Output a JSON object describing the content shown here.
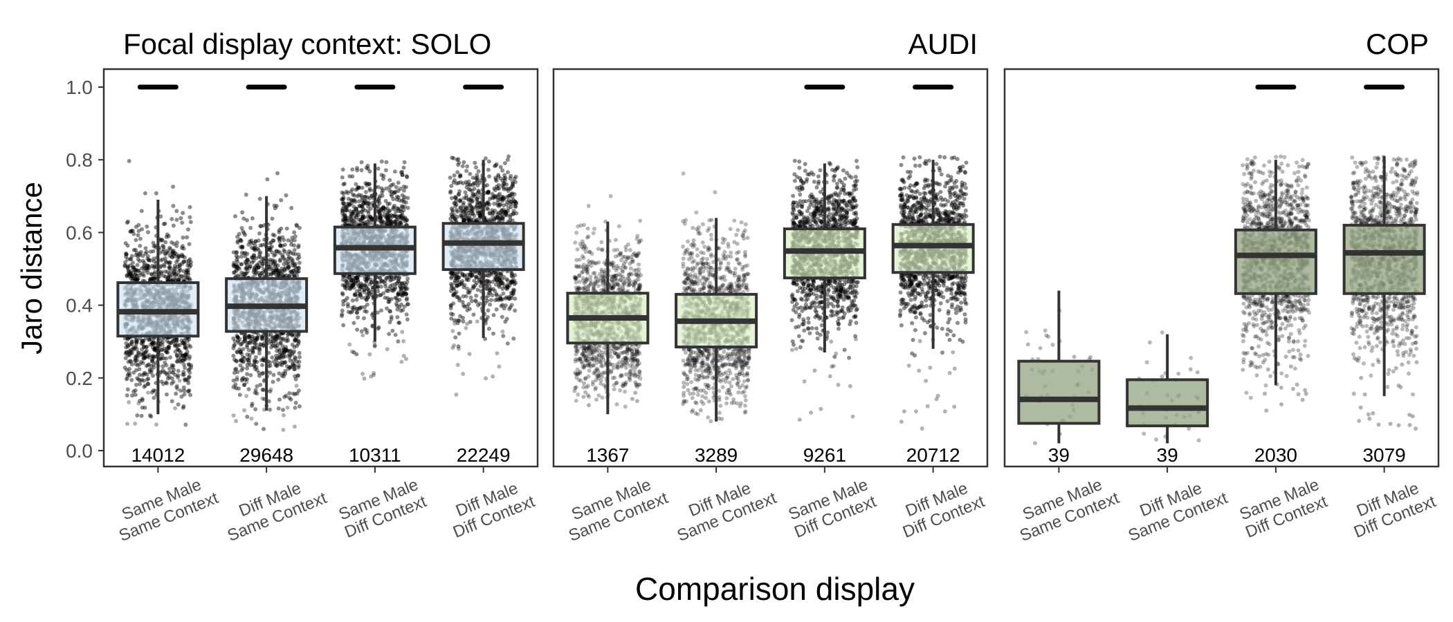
{
  "figure": {
    "ylabel": "Jaro distance",
    "xlabel": "Comparison display"
  },
  "colors": {
    "solo_fill": "#d3e4f1",
    "audi_fill": "#d9efc4",
    "cop_fill": "#97a886",
    "box_stroke": "#333333",
    "frame": "#333333",
    "points": "#000000"
  },
  "chart_data": {
    "type": "box",
    "ylim": [
      0,
      1
    ],
    "yticks": [
      "0.0",
      "0.2",
      "0.4",
      "0.6",
      "0.8",
      "1.0"
    ],
    "grid": false,
    "points_jittered": true,
    "categories": [
      "Same Male\nSame Context",
      "Diff Male\nSame Context",
      "Same Male\nDiff Context",
      "Diff Male\nDiff Context"
    ],
    "panels": [
      {
        "title": "Focal display context: SOLO",
        "fill": "#d3e4f1",
        "boxes": [
          {
            "category": "Same Male\nSame Context",
            "n": "14012",
            "min": 0.1,
            "q1": 0.315,
            "median": 0.382,
            "q3": 0.462,
            "max": 0.69,
            "point_min": 0.07,
            "point_max": 0.8,
            "ones": true
          },
          {
            "category": "Diff Male\nSame Context",
            "n": "29648",
            "min": 0.11,
            "q1": 0.328,
            "median": 0.397,
            "q3": 0.473,
            "max": 0.7,
            "point_min": 0.05,
            "point_max": 0.8,
            "ones": true
          },
          {
            "category": "Same Male\nDiff Context",
            "n": "10311",
            "min": 0.3,
            "q1": 0.487,
            "median": 0.558,
            "q3": 0.615,
            "max": 0.79,
            "point_min": 0.14,
            "point_max": 0.8,
            "ones": true
          },
          {
            "category": "Diff Male\nDiff Context",
            "n": "22249",
            "min": 0.31,
            "q1": 0.498,
            "median": 0.571,
            "q3": 0.625,
            "max": 0.8,
            "point_min": 0.15,
            "point_max": 0.81,
            "ones": true
          }
        ]
      },
      {
        "title": "AUDI",
        "fill": "#d9efc4",
        "boxes": [
          {
            "category": "Same Male\nSame Context",
            "n": "1367",
            "min": 0.1,
            "q1": 0.296,
            "median": 0.365,
            "q3": 0.433,
            "max": 0.63,
            "point_min": 0.12,
            "point_max": 0.71,
            "ones": false
          },
          {
            "category": "Diff Male\nSame Context",
            "n": "3289",
            "min": 0.08,
            "q1": 0.285,
            "median": 0.356,
            "q3": 0.43,
            "max": 0.64,
            "point_min": 0.08,
            "point_max": 0.8,
            "ones": false
          },
          {
            "category": "Same Male\nDiff Context",
            "n": "9261",
            "min": 0.27,
            "q1": 0.475,
            "median": 0.549,
            "q3": 0.61,
            "max": 0.79,
            "point_min": 0.08,
            "point_max": 0.8,
            "ones": true
          },
          {
            "category": "Diff Male\nDiff Context",
            "n": "20712",
            "min": 0.28,
            "q1": 0.49,
            "median": 0.564,
            "q3": 0.622,
            "max": 0.8,
            "point_min": 0.05,
            "point_max": 0.81,
            "ones": true
          }
        ]
      },
      {
        "title": "COP",
        "fill": "#97a886",
        "boxes": [
          {
            "category": "Same Male\nSame Context",
            "n": "39",
            "min": 0.02,
            "q1": 0.075,
            "median": 0.141,
            "q3": 0.246,
            "max": 0.44,
            "point_min": 0.02,
            "point_max": 0.44,
            "ones": false
          },
          {
            "category": "Diff Male\nSame Context",
            "n": "39",
            "min": 0.02,
            "q1": 0.068,
            "median": 0.117,
            "q3": 0.195,
            "max": 0.32,
            "point_min": 0.02,
            "point_max": 0.42,
            "ones": false
          },
          {
            "category": "Same Male\nDiff Context",
            "n": "2030",
            "min": 0.18,
            "q1": 0.432,
            "median": 0.537,
            "q3": 0.607,
            "max": 0.8,
            "point_min": 0.09,
            "point_max": 0.81,
            "ones": true
          },
          {
            "category": "Diff Male\nDiff Context",
            "n": "3079",
            "min": 0.15,
            "q1": 0.432,
            "median": 0.544,
            "q3": 0.62,
            "max": 0.81,
            "point_min": 0.06,
            "point_max": 0.81,
            "ones": true
          }
        ]
      }
    ]
  }
}
